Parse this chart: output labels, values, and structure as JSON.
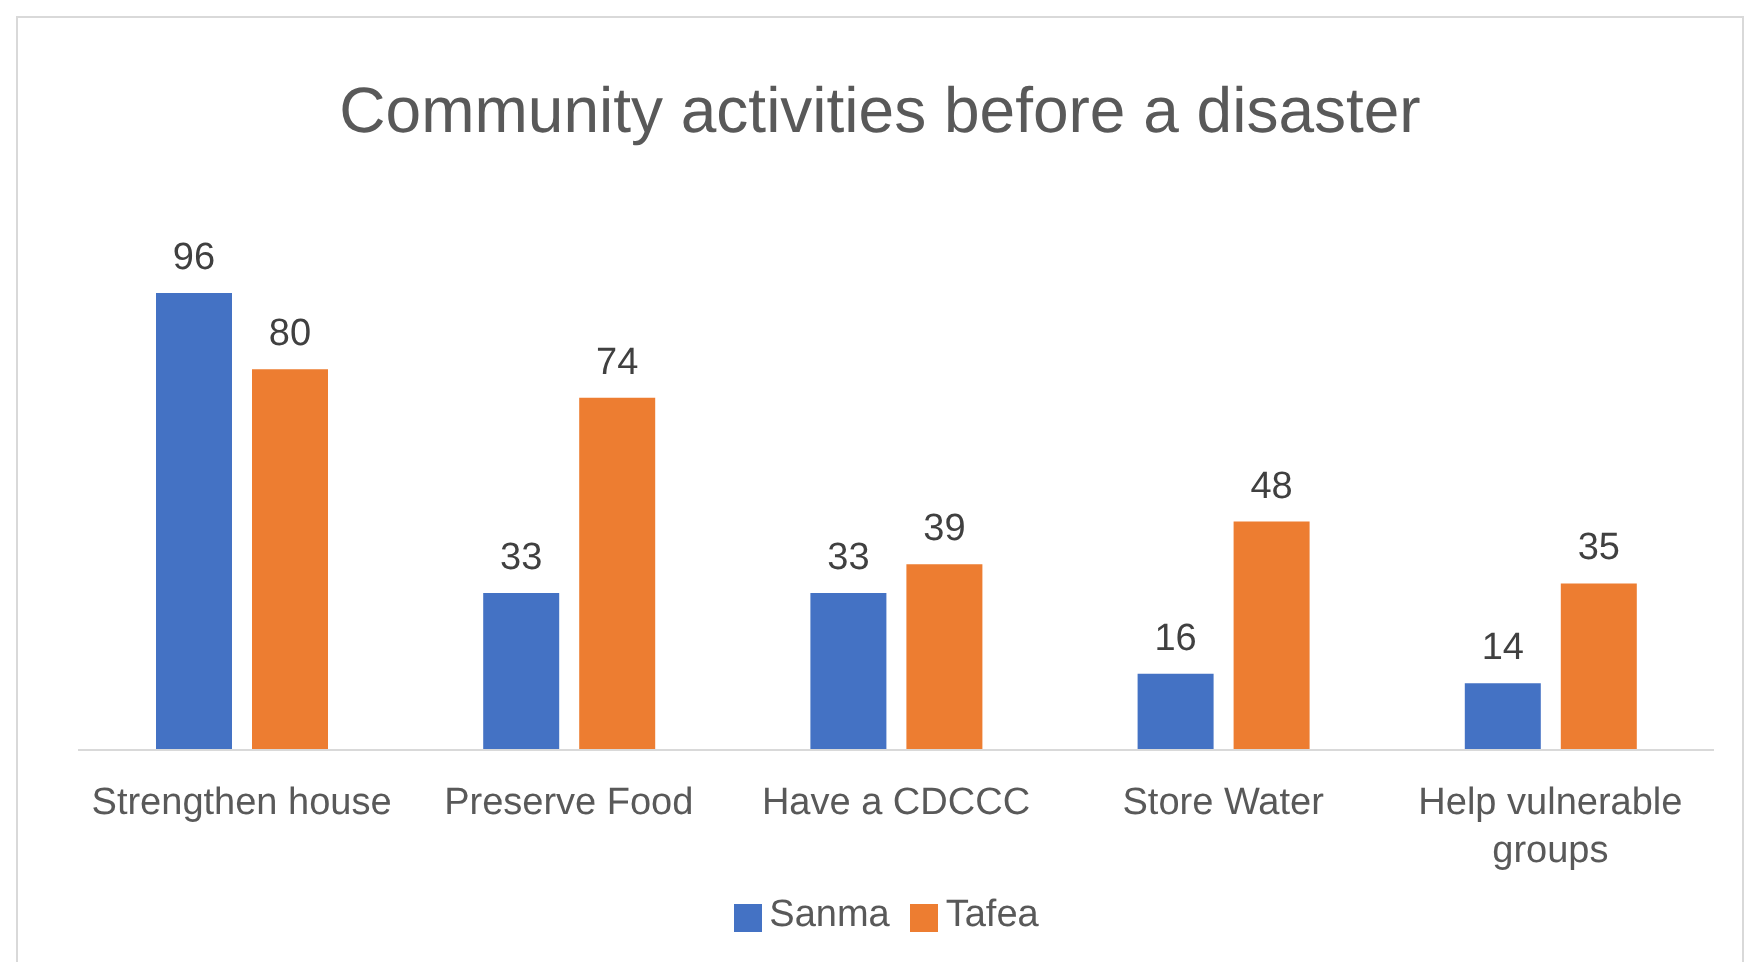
{
  "chart_data": {
    "type": "bar",
    "title": "Community activities before a disaster",
    "categories": [
      "Strengthen house",
      "Preserve Food",
      "Have a CDCCC",
      "Store Water",
      "Help vulnerable groups"
    ],
    "series": [
      {
        "name": "Sanma",
        "color": "#4472c4",
        "values": [
          96,
          33,
          33,
          16,
          14
        ]
      },
      {
        "name": "Tafea",
        "color": "#ed7d31",
        "values": [
          80,
          74,
          39,
          48,
          35
        ]
      }
    ],
    "data_labels": true,
    "legend": "bottom",
    "grid": false
  }
}
